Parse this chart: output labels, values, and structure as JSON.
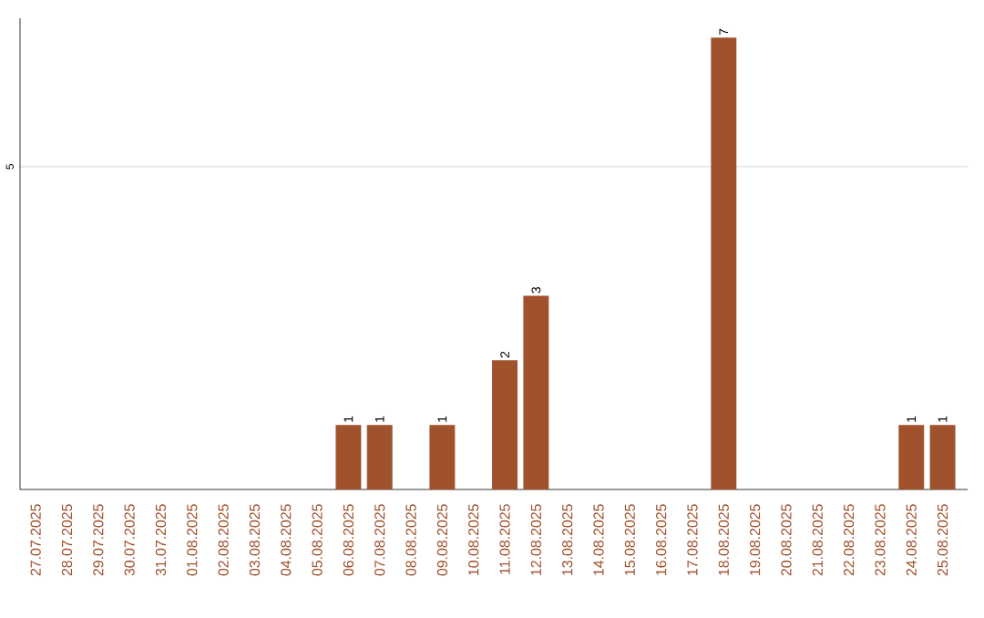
{
  "chart_data": {
    "type": "bar",
    "categories": [
      "27.07.2025",
      "28.07.2025",
      "29.07.2025",
      "30.07.2025",
      "31.07.2025",
      "01.08.2025",
      "02.08.2025",
      "03.08.2025",
      "04.08.2025",
      "05.08.2025",
      "06.08.2025",
      "07.08.2025",
      "08.08.2025",
      "09.08.2025",
      "10.08.2025",
      "11.08.2025",
      "12.08.2025",
      "13.08.2025",
      "14.08.2025",
      "15.08.2025",
      "16.08.2025",
      "17.08.2025",
      "18.08.2025",
      "19.08.2025",
      "20.08.2025",
      "21.08.2025",
      "22.08.2025",
      "23.08.2025",
      "24.08.2025",
      "25.08.2025"
    ],
    "values": [
      0,
      0,
      0,
      0,
      0,
      0,
      0,
      0,
      0,
      0,
      1,
      1,
      0,
      1,
      0,
      2,
      3,
      0,
      0,
      0,
      0,
      0,
      7,
      0,
      0,
      0,
      0,
      0,
      1,
      1
    ],
    "value_labels": [
      null,
      null,
      null,
      null,
      null,
      null,
      null,
      null,
      null,
      null,
      "1",
      "1",
      null,
      "1",
      null,
      "2",
      "3",
      null,
      null,
      null,
      null,
      null,
      "7",
      null,
      null,
      null,
      null,
      null,
      "1",
      "1"
    ],
    "color": "#a0522d",
    "ylim": [
      0,
      7.3
    ],
    "yticks": [
      5
    ],
    "grid": "y"
  }
}
